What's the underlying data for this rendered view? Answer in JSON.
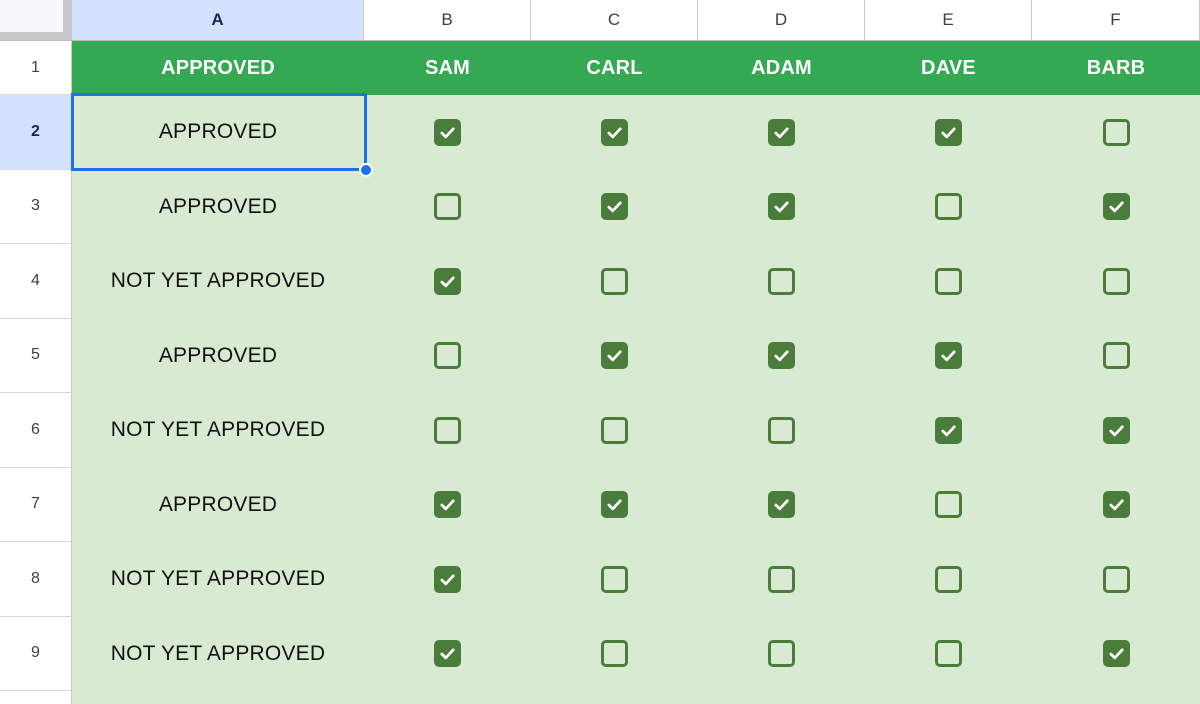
{
  "app_title": "Approval checklist spreadsheet",
  "colors": {
    "header_row_green": "#34a853",
    "cell_light_green": "#d9ead3",
    "checkbox_green": "#4a7d3c",
    "selection_blue": "#1a73e8",
    "selected_header_bg": "#d3e3fd",
    "selected_header_text": "#16255c"
  },
  "column_headers": [
    {
      "label": "A",
      "selected": true
    },
    {
      "label": "B",
      "selected": false
    },
    {
      "label": "C",
      "selected": false
    },
    {
      "label": "D",
      "selected": false
    },
    {
      "label": "E",
      "selected": false
    },
    {
      "label": "F",
      "selected": false
    }
  ],
  "header_row": {
    "row": "1",
    "values": [
      "APPROVED",
      "SAM",
      "CARL",
      "ADAM",
      "DAVE",
      "BARB"
    ]
  },
  "rows": [
    {
      "row": "2",
      "label": "APPROVED",
      "checks": [
        true,
        true,
        true,
        true,
        false
      ],
      "selected": true
    },
    {
      "row": "3",
      "label": "APPROVED",
      "checks": [
        false,
        true,
        true,
        false,
        true
      ],
      "selected": false
    },
    {
      "row": "4",
      "label": "NOT YET APPROVED",
      "checks": [
        true,
        false,
        false,
        false,
        false
      ],
      "selected": false
    },
    {
      "row": "5",
      "label": "APPROVED",
      "checks": [
        false,
        true,
        true,
        true,
        false
      ],
      "selected": false
    },
    {
      "row": "6",
      "label": "NOT YET APPROVED",
      "checks": [
        false,
        false,
        false,
        true,
        true
      ],
      "selected": false
    },
    {
      "row": "7",
      "label": "APPROVED",
      "checks": [
        true,
        true,
        true,
        false,
        true
      ],
      "selected": false
    },
    {
      "row": "8",
      "label": "NOT YET APPROVED",
      "checks": [
        true,
        false,
        false,
        false,
        false
      ],
      "selected": false
    },
    {
      "row": "9",
      "label": "NOT YET APPROVED",
      "checks": [
        true,
        false,
        false,
        false,
        true
      ],
      "selected": false
    }
  ],
  "selection": {
    "cell": "A2",
    "column": "A",
    "row": "2"
  }
}
